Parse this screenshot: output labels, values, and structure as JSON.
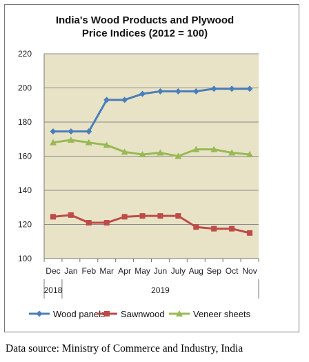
{
  "chart_data": {
    "type": "line",
    "title_lines": [
      "India's Wood Products and Plywood",
      "Price Indices (2012 = 100)"
    ],
    "categories": [
      "Dec",
      "Jan",
      "Feb",
      "Mar",
      "Apr",
      "May",
      "Jun",
      "July",
      "Aug",
      "Sep",
      "Oct",
      "Nov"
    ],
    "year_labels": [
      {
        "label": "2018",
        "from": 0,
        "to": 0
      },
      {
        "label": "2019",
        "from": 1,
        "to": 11
      }
    ],
    "ylim": [
      100,
      220
    ],
    "yticks": [
      100,
      120,
      140,
      160,
      180,
      200,
      220
    ],
    "grid": "horizontal",
    "legend": "bottom",
    "series": [
      {
        "name": "Wood panels",
        "color": "#4a7ebb",
        "marker": "diamond",
        "values": [
          174.5,
          174.5,
          174.5,
          193,
          193,
          196.5,
          198,
          198,
          198,
          199.5,
          199.5,
          199.5
        ]
      },
      {
        "name": "Sawnwood",
        "color": "#be4b48",
        "marker": "square",
        "values": [
          124.5,
          125.5,
          121,
          121,
          124.5,
          125,
          125,
          125,
          118.5,
          117.5,
          117.5,
          115
        ]
      },
      {
        "name": "Veneer sheets",
        "color": "#98b954",
        "marker": "triangle",
        "values": [
          168,
          169.5,
          168,
          166.5,
          162.5,
          161,
          162,
          160,
          164,
          164,
          162,
          161
        ]
      }
    ]
  },
  "source_note": "Data source: Ministry of Commerce and Industry, India"
}
